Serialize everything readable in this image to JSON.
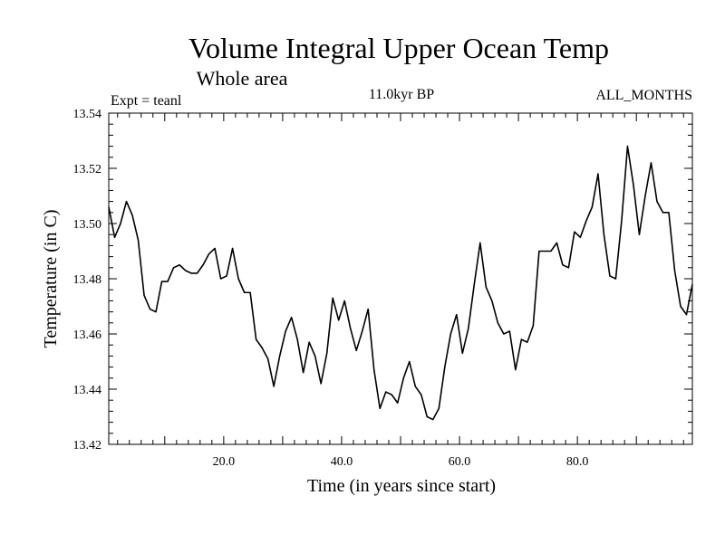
{
  "chart_data": {
    "type": "line",
    "title": "Volume Integral Upper Ocean Temp",
    "subtitle": "Whole area",
    "annotation_left": "Expt = teanl",
    "annotation_center": "11.0kyr BP",
    "annotation_right": "ALL_MONTHS",
    "xlabel": "Time (in years since start)",
    "ylabel": "Temperature (in C)",
    "xlim": [
      0.5,
      99.5
    ],
    "ylim": [
      13.42,
      13.54
    ],
    "xticks": [
      "20.0",
      "40.0",
      "60.0",
      "80.0"
    ],
    "xtick_values": [
      20,
      40,
      60,
      80
    ],
    "yticks": [
      "13.42",
      "13.44",
      "13.46",
      "13.48",
      "13.50",
      "13.52",
      "13.54"
    ],
    "ytick_values": [
      13.42,
      13.44,
      13.46,
      13.48,
      13.5,
      13.52,
      13.54
    ],
    "grid": false,
    "series": [
      {
        "name": "Volume Integral Upper Ocean Temp",
        "color": "#000000",
        "x": [
          0.5,
          1.5,
          2.5,
          3.5,
          4.5,
          5.5,
          6.5,
          7.5,
          8.5,
          9.5,
          10.5,
          11.5,
          12.5,
          13.5,
          14.5,
          15.5,
          16.5,
          17.5,
          18.5,
          19.5,
          20.5,
          21.5,
          22.5,
          23.5,
          24.5,
          25.5,
          26.5,
          27.5,
          28.5,
          29.5,
          30.5,
          31.5,
          32.5,
          33.5,
          34.5,
          35.5,
          36.5,
          37.5,
          38.5,
          39.5,
          40.5,
          41.5,
          42.5,
          43.5,
          44.5,
          45.5,
          46.5,
          47.5,
          48.5,
          49.5,
          50.5,
          51.5,
          52.5,
          53.5,
          54.5,
          55.5,
          56.5,
          57.5,
          58.5,
          59.5,
          60.5,
          61.5,
          62.5,
          63.5,
          64.5,
          65.5,
          66.5,
          67.5,
          68.5,
          69.5,
          70.5,
          71.5,
          72.5,
          73.5,
          74.5,
          75.5,
          76.5,
          77.5,
          78.5,
          79.5,
          80.5,
          81.5,
          82.5,
          83.5,
          84.5,
          85.5,
          86.5,
          87.5,
          88.5,
          89.5,
          90.5,
          91.5,
          92.5,
          93.5,
          94.5,
          95.5,
          96.5,
          97.5,
          98.5,
          99.5
        ],
        "y": [
          13.506,
          13.495,
          13.5,
          13.508,
          13.503,
          13.494,
          13.474,
          13.469,
          13.468,
          13.479,
          13.479,
          13.484,
          13.485,
          13.483,
          13.482,
          13.482,
          13.485,
          13.489,
          13.491,
          13.48,
          13.481,
          13.491,
          13.48,
          13.475,
          13.475,
          13.458,
          13.455,
          13.451,
          13.441,
          13.452,
          13.461,
          13.466,
          13.458,
          13.446,
          13.457,
          13.452,
          13.442,
          13.453,
          13.473,
          13.465,
          13.472,
          13.462,
          13.454,
          13.461,
          13.469,
          13.447,
          13.433,
          13.439,
          13.438,
          13.435,
          13.444,
          13.45,
          13.441,
          13.438,
          13.43,
          13.429,
          13.433,
          13.448,
          13.46,
          13.467,
          13.453,
          13.462,
          13.478,
          13.493,
          13.477,
          13.472,
          13.464,
          13.46,
          13.461,
          13.447,
          13.458,
          13.457,
          13.463,
          13.49,
          13.49,
          13.49,
          13.493,
          13.485,
          13.484,
          13.497,
          13.495,
          13.501,
          13.506,
          13.518,
          13.496,
          13.481,
          13.48,
          13.501,
          13.528,
          13.514,
          13.496,
          13.51,
          13.522,
          13.508,
          13.504,
          13.504,
          13.483,
          13.47,
          13.467,
          13.478
        ]
      }
    ]
  }
}
